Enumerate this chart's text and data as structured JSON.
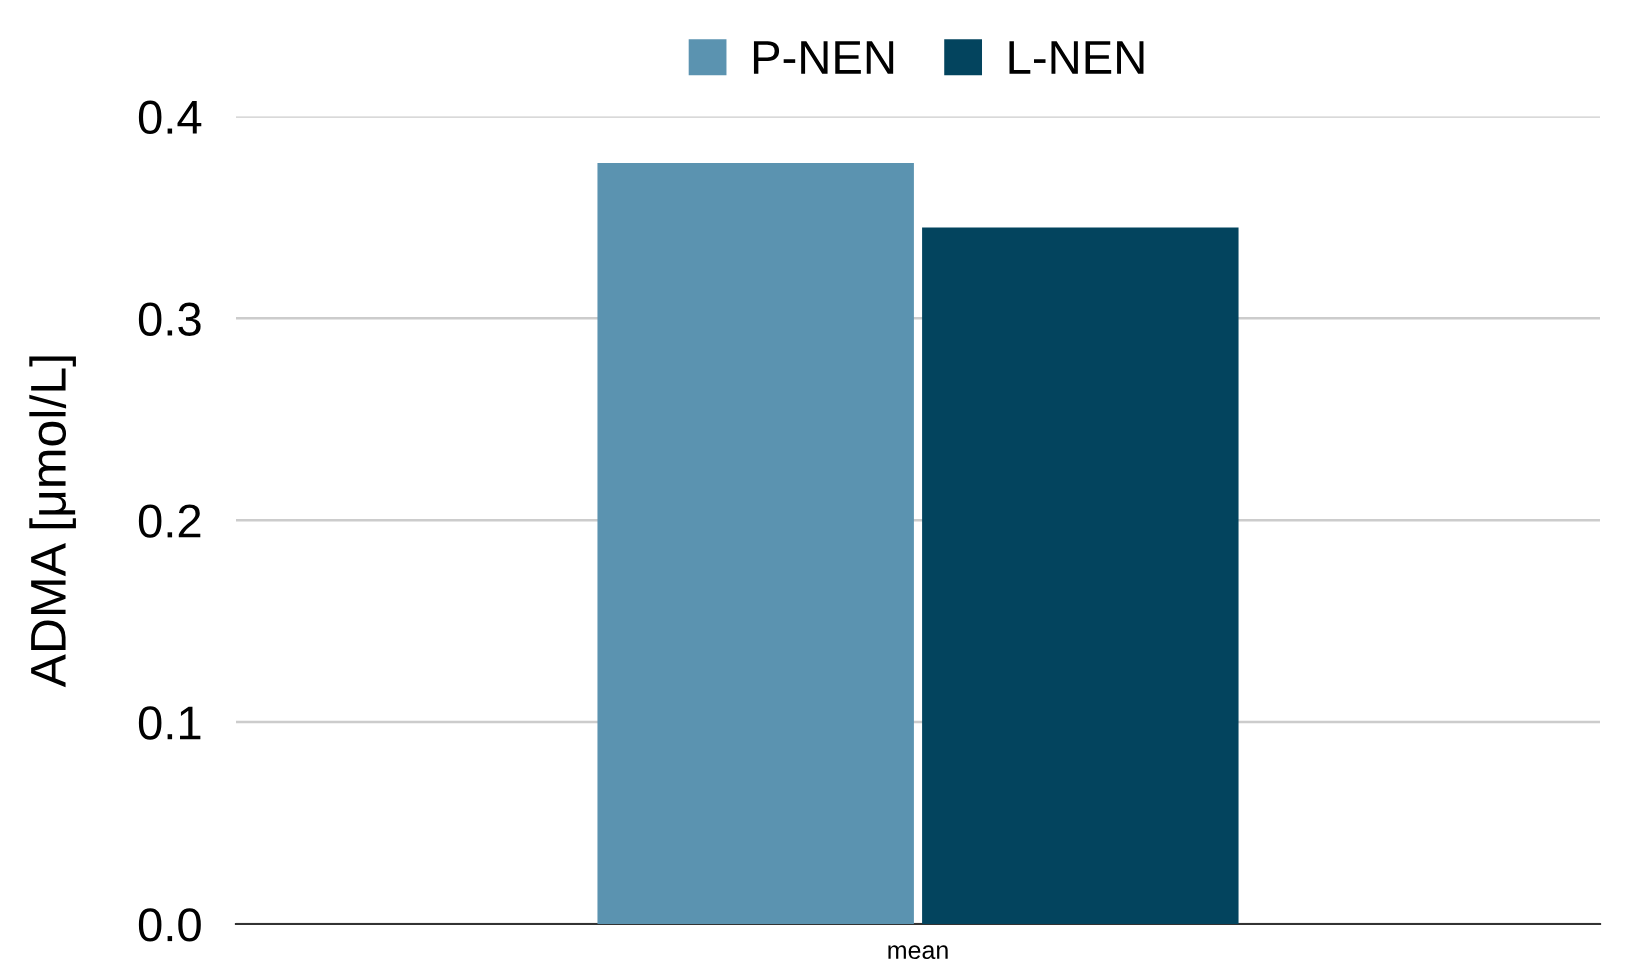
{
  "chart_data": {
    "type": "bar",
    "ylabel": "ADMA [μmol/L]",
    "categories": [
      "mean"
    ],
    "series": [
      {
        "name": "P-NEN",
        "color": "#5b93b0",
        "values": [
          0.377
        ]
      },
      {
        "name": "L-NEN",
        "color": "#03445e",
        "values": [
          0.345
        ]
      }
    ],
    "ylim": [
      0,
      0.4
    ],
    "yticks": [
      {
        "value": 0,
        "label": "0.0"
      },
      {
        "value": 0.1,
        "label": "0.1"
      },
      {
        "value": 0.2,
        "label": "0.2"
      },
      {
        "value": 0.3,
        "label": "0.3"
      },
      {
        "value": 0.4,
        "label": "0.4"
      }
    ],
    "grid": "y",
    "legend": "top"
  }
}
